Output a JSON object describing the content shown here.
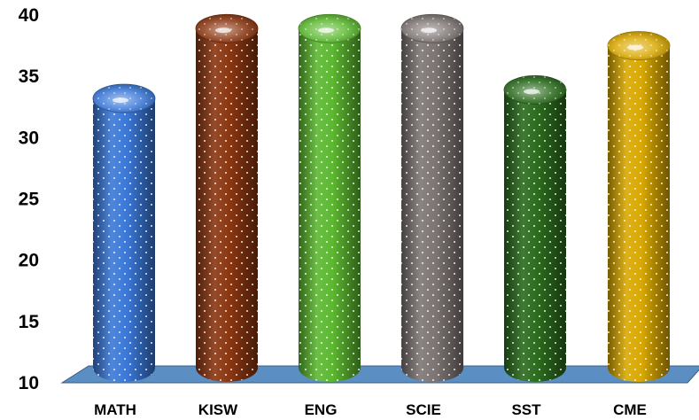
{
  "chart_data": {
    "type": "bar",
    "style": "3d-cylinder",
    "title": "",
    "xlabel": "",
    "ylabel": "",
    "ylim": [
      10,
      40
    ],
    "yticks": [
      "10",
      "15",
      "20",
      "25",
      "30",
      "35",
      "40"
    ],
    "grid": false,
    "legend": "none",
    "categories": [
      "MATH",
      "KISW",
      "ENG",
      "SCIE",
      "SST",
      "CME"
    ],
    "values": [
      33.2,
      38.9,
      38.9,
      38.9,
      33.9,
      37.5
    ],
    "colors": [
      "#3a78d8",
      "#8a3610",
      "#5cb830",
      "#7d7574",
      "#2b6b1d",
      "#d9a800"
    ],
    "floor_color": "#5b8fc4"
  }
}
